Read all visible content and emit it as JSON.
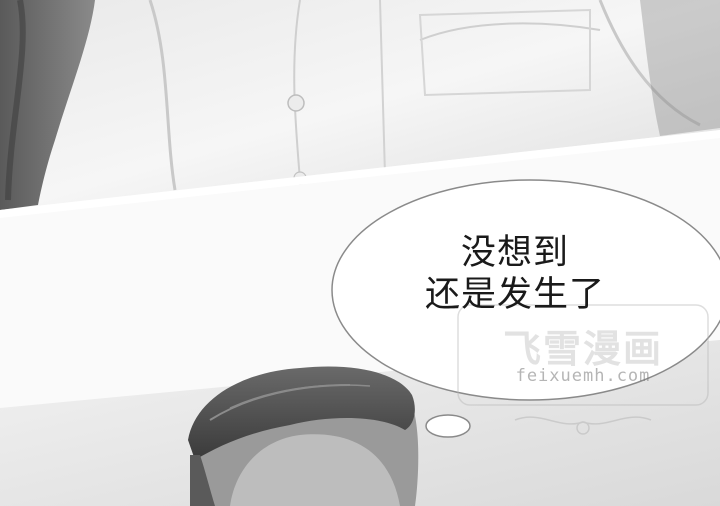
{
  "speech_bubble": {
    "line1": "没想到",
    "line2": "还是发生了"
  },
  "watermark": {
    "title": "飞雪漫画",
    "url": "feixuemh.com"
  }
}
